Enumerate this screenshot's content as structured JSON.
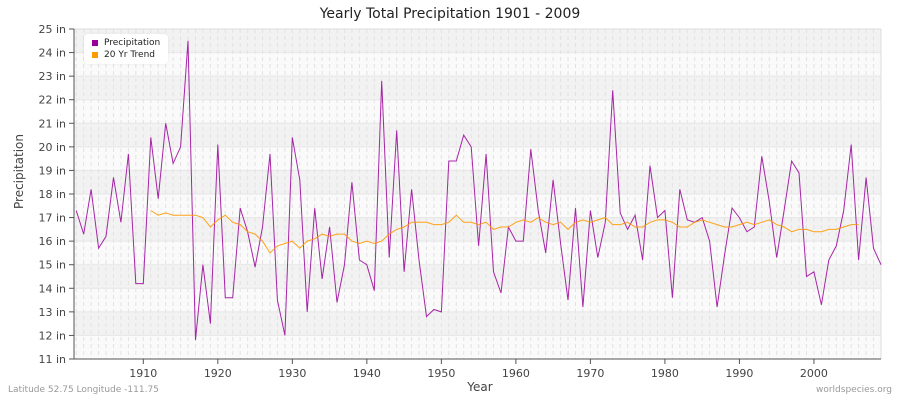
{
  "title": "Yearly Total Precipitation 1901 - 2009",
  "footer": {
    "left": "Latitude 52.75 Longitude -111.75",
    "right": "worldspecies.org"
  },
  "legend": [
    {
      "label": "Precipitation",
      "color": "#990099"
    },
    {
      "label": "20 Yr Trend",
      "color": "#ff9900"
    }
  ],
  "chart_data": {
    "type": "line",
    "title": "Yearly Total Precipitation 1901 - 2009",
    "xlabel": "Year",
    "ylabel": "Precipitation",
    "ylim": [
      11,
      25
    ],
    "xlim": [
      1901,
      2009
    ],
    "y_ticks": [
      "11 in",
      "12 in",
      "13 in",
      "14 in",
      "15 in",
      "16 in",
      "17 in",
      "18 in",
      "19 in",
      "20 in",
      "21 in",
      "22 in",
      "23 in",
      "24 in",
      "25 in"
    ],
    "x_ticks": [
      "1910",
      "1920",
      "1930",
      "1940",
      "1950",
      "1960",
      "1970",
      "1980",
      "1990",
      "2000"
    ],
    "grid": true,
    "legend_position": "top-left",
    "series": [
      {
        "name": "Precipitation",
        "color": "#990099",
        "x_start": 1901,
        "values": [
          17.3,
          16.3,
          18.2,
          15.7,
          16.2,
          18.7,
          16.8,
          19.7,
          14.2,
          14.2,
          20.4,
          17.8,
          21.0,
          19.3,
          20.0,
          24.5,
          11.8,
          15.0,
          12.5,
          20.1,
          13.6,
          13.6,
          17.4,
          16.4,
          14.9,
          16.6,
          19.7,
          13.5,
          12.0,
          20.4,
          18.6,
          13.0,
          17.4,
          14.4,
          16.6,
          13.4,
          15.0,
          18.5,
          15.2,
          15.0,
          13.9,
          22.8,
          15.3,
          20.7,
          14.7,
          18.2,
          15.2,
          12.8,
          13.1,
          13.0,
          19.4,
          19.4,
          20.5,
          20.0,
          15.8,
          19.7,
          14.7,
          13.8,
          16.6,
          16.0,
          16.0,
          19.9,
          17.3,
          15.5,
          18.6,
          15.9,
          13.5,
          17.4,
          13.2,
          17.3,
          15.3,
          16.8,
          22.4,
          17.2,
          16.5,
          17.1,
          15.2,
          19.2,
          17.0,
          17.3,
          13.6,
          18.2,
          16.9,
          16.8,
          17.0,
          16.0,
          13.2,
          15.4,
          17.4,
          17.0,
          16.4,
          16.6,
          19.6,
          17.7,
          15.3,
          17.3,
          19.4,
          18.9,
          14.5,
          14.7,
          13.3,
          15.2,
          15.8,
          17.3,
          20.1,
          15.2,
          18.7,
          15.7,
          15.0
        ]
      },
      {
        "name": "20 Yr Trend",
        "color": "#ff9900",
        "x_start": 1911,
        "values": [
          17.3,
          17.1,
          17.2,
          17.1,
          17.1,
          17.1,
          17.1,
          17.0,
          16.6,
          16.9,
          17.1,
          16.8,
          16.7,
          16.4,
          16.3,
          16.0,
          15.5,
          15.8,
          15.9,
          16.0,
          15.7,
          16.0,
          16.1,
          16.3,
          16.2,
          16.3,
          16.3,
          16.0,
          15.9,
          16.0,
          15.9,
          16.0,
          16.3,
          16.5,
          16.6,
          16.8,
          16.8,
          16.8,
          16.7,
          16.7,
          16.8,
          17.1,
          16.8,
          16.8,
          16.7,
          16.8,
          16.5,
          16.6,
          16.6,
          16.8,
          16.9,
          16.8,
          17.0,
          16.8,
          16.7,
          16.8,
          16.5,
          16.8,
          16.9,
          16.8,
          16.9,
          17.0,
          16.7,
          16.7,
          16.8,
          16.6,
          16.6,
          16.8,
          16.9,
          16.9,
          16.8,
          16.6,
          16.6,
          16.8,
          16.9,
          16.8,
          16.7,
          16.6,
          16.6,
          16.7,
          16.8,
          16.7,
          16.8,
          16.9,
          16.7,
          16.6,
          16.4,
          16.5,
          16.5,
          16.4,
          16.4,
          16.5,
          16.5,
          16.6,
          16.7,
          16.7
        ]
      }
    ]
  }
}
